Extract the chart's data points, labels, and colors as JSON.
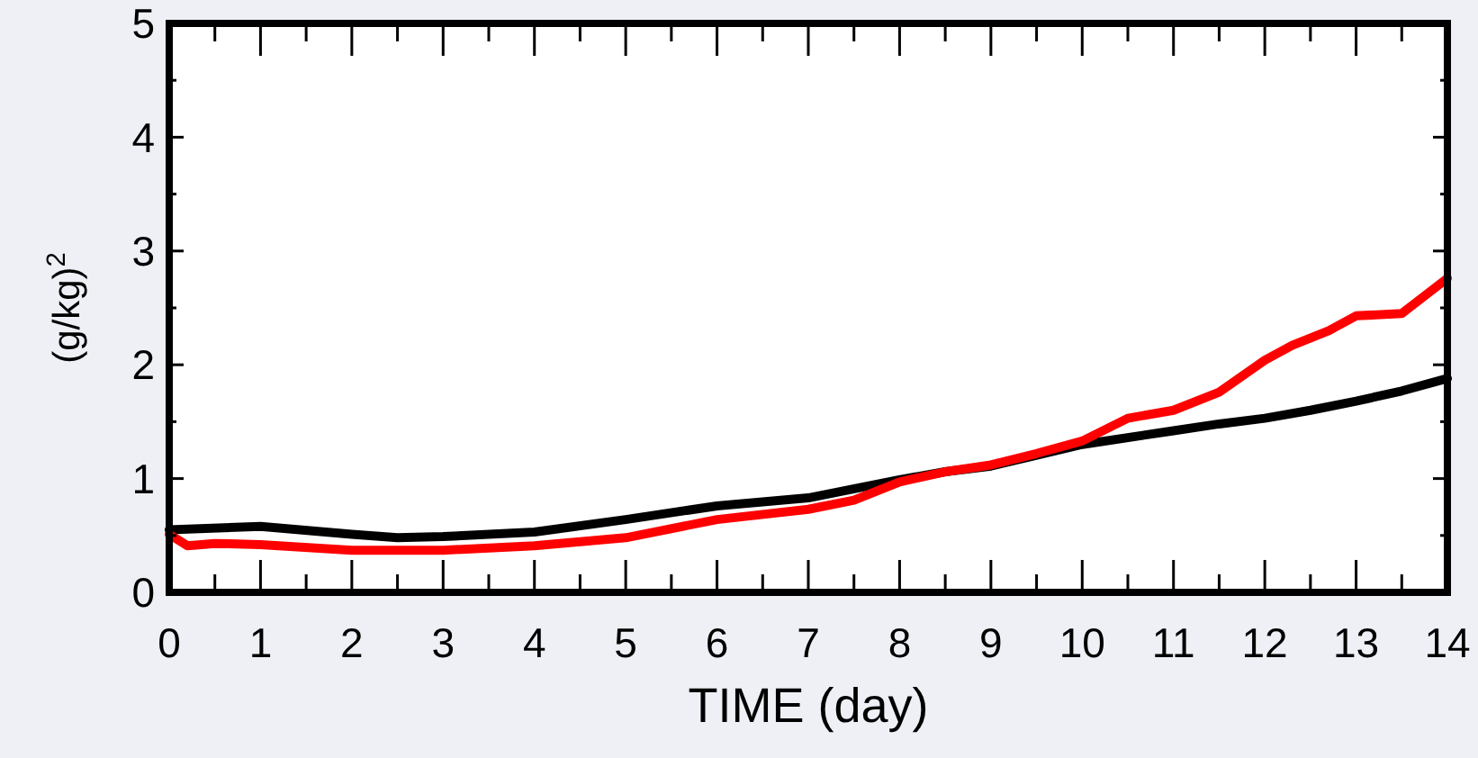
{
  "chart_data": {
    "type": "line",
    "xlabel": "TIME (day)",
    "ylabel": "(g/kg)$^{2}$",
    "xlim": [
      0,
      14
    ],
    "ylim": [
      0,
      5
    ],
    "xticks": [
      0,
      {
        "value": 0.5,
        "label": null
      },
      1,
      {
        "value": 1.5,
        "label": null
      },
      2,
      {
        "value": 2.5,
        "label": null
      },
      3,
      {
        "value": 3.5,
        "label": null
      },
      4,
      {
        "value": 4.5,
        "label": null
      },
      5,
      {
        "value": 5.5,
        "label": null
      },
      6,
      {
        "value": 6.5,
        "label": null
      },
      7,
      {
        "value": 7.5,
        "label": null
      },
      8,
      {
        "value": 8.5,
        "label": null
      },
      9,
      {
        "value": 9.5,
        "label": null
      },
      10,
      {
        "value": 10.5,
        "label": null
      },
      11,
      {
        "value": 11.5,
        "label": null
      },
      12,
      {
        "value": 12.5,
        "label": null
      },
      13,
      {
        "value": 13.5,
        "label": null
      },
      14
    ],
    "yticks": [
      0,
      {
        "value": 0.5,
        "label": null
      },
      1,
      {
        "value": 1.5,
        "label": null
      },
      2,
      {
        "value": 2.5,
        "label": null
      },
      3,
      {
        "value": 3.5,
        "label": null
      },
      4,
      {
        "value": 4.5,
        "label": null
      },
      5
    ],
    "grid": false,
    "line_style": "solid",
    "series": [
      {
        "color": "#000000",
        "x": [
          0,
          1,
          2,
          2.5,
          3,
          4,
          5,
          6,
          7,
          8,
          8.5,
          9,
          10,
          11,
          11.5,
          12,
          12.5,
          13,
          13.5,
          14
        ],
        "values": [
          0.55,
          0.58,
          0.51,
          0.48,
          0.49,
          0.53,
          0.64,
          0.76,
          0.83,
          0.99,
          1.06,
          1.11,
          1.3,
          1.42,
          1.48,
          1.53,
          1.6,
          1.68,
          1.77,
          1.88
        ]
      },
      {
        "color": "#ff0000",
        "x": [
          0,
          0.2,
          0.5,
          1,
          2,
          3,
          4,
          5,
          6,
          7,
          7.5,
          8,
          8.5,
          9,
          9.5,
          10,
          10.5,
          11,
          11.5,
          12,
          12.3,
          12.7,
          13,
          13.5,
          14
        ],
        "values": [
          0.51,
          0.41,
          0.43,
          0.42,
          0.37,
          0.37,
          0.41,
          0.48,
          0.64,
          0.73,
          0.81,
          0.97,
          1.06,
          1.12,
          1.22,
          1.33,
          1.53,
          1.6,
          1.76,
          2.04,
          2.17,
          2.3,
          2.43,
          2.45,
          2.76
        ]
      }
    ]
  }
}
